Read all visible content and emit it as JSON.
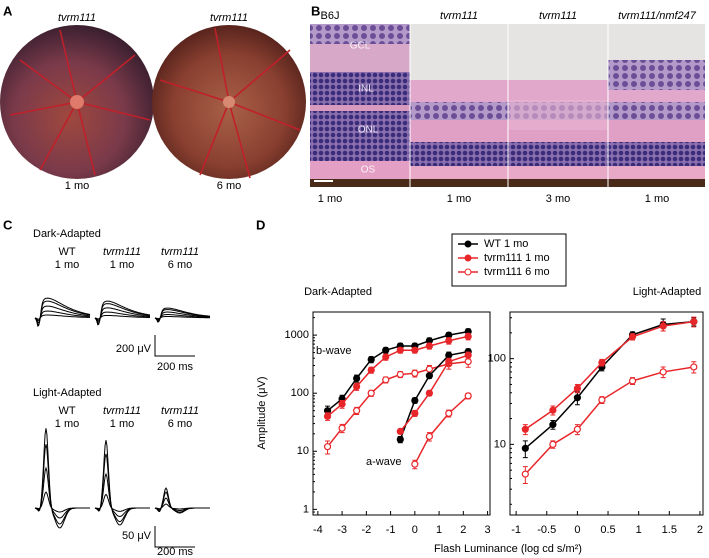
{
  "panel_a": {
    "label": "A",
    "images": [
      {
        "title": "tvrm111",
        "caption": "1 mo"
      },
      {
        "title": "tvrm111",
        "caption": "6 mo"
      }
    ]
  },
  "panel_b": {
    "label": "B",
    "columns": [
      {
        "title": "B6J",
        "caption": "1 mo"
      },
      {
        "title": "tvrm111",
        "caption": "1 mo"
      },
      {
        "title": "tvrm111",
        "caption": "3 mo"
      },
      {
        "title": "tvrm111/nmf247",
        "caption": "1 mo"
      }
    ],
    "layers": [
      "GCL",
      "INL",
      "ONL",
      "OS"
    ]
  },
  "panel_c": {
    "label": "C",
    "groups": [
      {
        "title": "Dark-Adapted",
        "columns": [
          {
            "title": "WT",
            "caption": "1 mo"
          },
          {
            "title": "tvrm111",
            "caption": "1 mo"
          },
          {
            "title": "tvrm111",
            "caption": "6 mo"
          }
        ],
        "scale_y": "200 μV",
        "scale_x": "200 ms"
      },
      {
        "title": "Light-Adapted",
        "columns": [
          {
            "title": "WT",
            "caption": "1 mo"
          },
          {
            "title": "tvrm111",
            "caption": "1 mo"
          },
          {
            "title": "tvrm111",
            "caption": "6 mo"
          }
        ],
        "scale_y": "50 μV",
        "scale_x": "200 ms"
      }
    ]
  },
  "panel_d": {
    "label": "D",
    "y_label": "Amplitude (μV)",
    "x_label": "Flash Luminance (log cd s/m²)"
  },
  "chart_data": [
    {
      "type": "line",
      "title": "Dark-Adapted",
      "log_y": true,
      "xlim": [
        -4.2,
        3.1
      ],
      "xticks": [
        -4,
        -3,
        -2,
        -1,
        0,
        1,
        2,
        3
      ],
      "ylim": [
        0.8,
        2500
      ],
      "yticks": [
        1,
        10,
        100,
        1000
      ],
      "annotations": [
        "b-wave",
        "a-wave"
      ],
      "series": [
        {
          "name": "WT 1 mo",
          "color": "#000000",
          "marker": "filled",
          "x": [
            -3.6,
            -3.0,
            -2.4,
            -1.8,
            -1.2,
            -0.6,
            0,
            0.6,
            1.4,
            2.2
          ],
          "values": [
            50,
            80,
            180,
            380,
            550,
            650,
            650,
            800,
            1000,
            1150
          ],
          "errors": [
            10,
            12,
            25,
            45,
            60,
            70,
            70,
            90,
            110,
            130
          ]
        },
        {
          "name": "tvrm111 1 mo",
          "color": "#e8262a",
          "marker": "filled",
          "x": [
            -3.6,
            -3.0,
            -2.4,
            -1.8,
            -1.2,
            -0.6,
            0,
            0.6,
            1.4,
            2.2
          ],
          "values": [
            40,
            65,
            130,
            250,
            420,
            550,
            550,
            650,
            800,
            950
          ],
          "errors": [
            6,
            10,
            18,
            30,
            50,
            60,
            60,
            75,
            100,
            120
          ]
        },
        {
          "name": "tvrm111 6 mo",
          "color": "#e8262a",
          "marker": "open",
          "x": [
            -3.6,
            -3.0,
            -2.4,
            -1.8,
            -1.2,
            -0.6,
            0,
            0.6,
            1.4,
            2.2
          ],
          "values": [
            12,
            25,
            50,
            100,
            170,
            210,
            220,
            260,
            320,
            350
          ],
          "errors": [
            3,
            4,
            7,
            12,
            20,
            25,
            30,
            40,
            60,
            70
          ]
        },
        {
          "color": "#000000",
          "marker": "filled",
          "x": [
            -0.6,
            0,
            0.6,
            1.4,
            2.2
          ],
          "values": [
            16,
            75,
            200,
            450,
            520
          ],
          "errors": [
            2,
            8,
            20,
            60,
            60
          ]
        },
        {
          "color": "#e8262a",
          "marker": "filled",
          "x": [
            -0.6,
            0,
            0.6,
            1.4,
            2.2
          ],
          "values": [
            22,
            45,
            100,
            350,
            450
          ],
          "errors": [
            2,
            5,
            10,
            50,
            60
          ]
        },
        {
          "color": "#e8262a",
          "marker": "open",
          "x": [
            0,
            0.6,
            1.4,
            2.2
          ],
          "values": [
            6,
            18,
            45,
            90
          ],
          "errors": [
            1,
            3,
            6,
            10
          ]
        }
      ]
    },
    {
      "type": "line",
      "title": "Light-Adapted",
      "log_y": true,
      "xlim": [
        -1.1,
        2.05
      ],
      "xticks": [
        -1,
        -0.5,
        0,
        0.5,
        1,
        1.5,
        2
      ],
      "ylim": [
        1.5,
        350
      ],
      "yticks": [
        10,
        100
      ],
      "series": [
        {
          "color": "#000000",
          "marker": "filled",
          "x": [
            -0.85,
            -0.4,
            0,
            0.4,
            0.9,
            1.4,
            1.9
          ],
          "values": [
            9,
            17,
            35,
            80,
            190,
            250,
            270
          ],
          "errors": [
            2,
            2,
            6,
            8,
            15,
            40,
            30
          ]
        },
        {
          "color": "#e8262a",
          "marker": "filled",
          "x": [
            -0.85,
            -0.4,
            0,
            0.4,
            0.9,
            1.4,
            1.9
          ],
          "values": [
            15,
            25,
            45,
            90,
            180,
            240,
            270
          ],
          "errors": [
            2,
            3,
            5,
            8,
            15,
            30,
            35
          ]
        },
        {
          "color": "#e8262a",
          "marker": "open",
          "x": [
            -0.85,
            -0.4,
            0,
            0.4,
            0.9,
            1.4,
            1.9
          ],
          "values": [
            4.5,
            10,
            15,
            33,
            55,
            70,
            80
          ],
          "errors": [
            1,
            1,
            2,
            3,
            5,
            10,
            12
          ]
        }
      ]
    }
  ]
}
